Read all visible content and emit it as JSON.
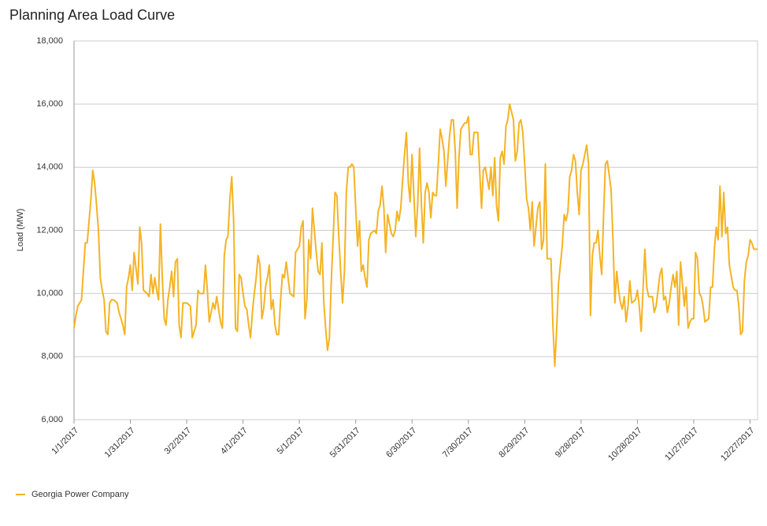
{
  "chart_data": {
    "type": "line",
    "title": "Planning Area Load Curve",
    "y_label": "Load (MW)",
    "categories": [
      "1/1/2017",
      null,
      null,
      null,
      null,
      null,
      null,
      null,
      null,
      null,
      null,
      null,
      null,
      null,
      null,
      null,
      null,
      null,
      null,
      null,
      null,
      null,
      null,
      null,
      null,
      null,
      null,
      null,
      null,
      null,
      "1/31/2017",
      null,
      null,
      null,
      null,
      null,
      null,
      null,
      null,
      null,
      null,
      null,
      null,
      null,
      null,
      null,
      null,
      null,
      null,
      null,
      null,
      null,
      null,
      null,
      null,
      null,
      null,
      null,
      null,
      null,
      "3/2/2017",
      null,
      null,
      null,
      null,
      null,
      null,
      null,
      null,
      null,
      null,
      null,
      null,
      null,
      null,
      null,
      null,
      null,
      null,
      null,
      null,
      null,
      null,
      null,
      null,
      null,
      null,
      null,
      null,
      null,
      "4/1/2017",
      null,
      null,
      null,
      null,
      null,
      null,
      null,
      null,
      null,
      null,
      null,
      null,
      null,
      null,
      null,
      null,
      null,
      null,
      null,
      null,
      null,
      null,
      null,
      null,
      null,
      null,
      null,
      null,
      null,
      "5/1/2017",
      null,
      null,
      null,
      null,
      null,
      null,
      null,
      null,
      null,
      null,
      null,
      null,
      null,
      null,
      null,
      null,
      null,
      null,
      null,
      null,
      null,
      null,
      null,
      null,
      null,
      null,
      null,
      null,
      null,
      "5/31/2017",
      null,
      null,
      null,
      null,
      null,
      null,
      null,
      null,
      null,
      null,
      null,
      null,
      null,
      null,
      null,
      null,
      null,
      null,
      null,
      null,
      null,
      null,
      null,
      null,
      null,
      null,
      null,
      null,
      null,
      "6/30/2017",
      null,
      null,
      null,
      null,
      null,
      null,
      null,
      null,
      null,
      null,
      null,
      null,
      null,
      null,
      null,
      null,
      null,
      null,
      null,
      null,
      null,
      null,
      null,
      null,
      null,
      null,
      null,
      null,
      null,
      "7/30/2017",
      null,
      null,
      null,
      null,
      null,
      null,
      null,
      null,
      null,
      null,
      null,
      null,
      null,
      null,
      null,
      null,
      null,
      null,
      null,
      null,
      null,
      null,
      null,
      null,
      null,
      null,
      null,
      null,
      null,
      "8/29/2017",
      null,
      null,
      null,
      null,
      null,
      null,
      null,
      null,
      null,
      null,
      null,
      null,
      null,
      null,
      null,
      null,
      null,
      null,
      null,
      null,
      null,
      null,
      null,
      null,
      null,
      null,
      null,
      null,
      null,
      "9/28/2017",
      null,
      null,
      null,
      null,
      null,
      null,
      null,
      null,
      null,
      null,
      null,
      null,
      null,
      null,
      null,
      null,
      null,
      null,
      null,
      null,
      null,
      null,
      null,
      null,
      null,
      null,
      null,
      null,
      null,
      "10/28/2017",
      null,
      null,
      null,
      null,
      null,
      null,
      null,
      null,
      null,
      null,
      null,
      null,
      null,
      null,
      null,
      null,
      null,
      null,
      null,
      null,
      null,
      null,
      null,
      null,
      null,
      null,
      null,
      null,
      null,
      "11/27/2017",
      null,
      null,
      null,
      null,
      null,
      null,
      null,
      null,
      null,
      null,
      null,
      null,
      null,
      null,
      null,
      null,
      null,
      null,
      null,
      null,
      null,
      null,
      null,
      null,
      null,
      null,
      null,
      null,
      null,
      "12/27/2017",
      null,
      null,
      null,
      null
    ],
    "series": [
      {
        "name": "Georgia Power Company",
        "color": "#f5b324",
        "values": [
          8900,
          9300,
          9600,
          9700,
          9800,
          10700,
          11600,
          11600,
          12300,
          13000,
          13900,
          13500,
          12800,
          12000,
          10500,
          10100,
          9800,
          8800,
          8700,
          9700,
          9800,
          9800,
          9750,
          9700,
          9400,
          9200,
          9000,
          8700,
          10200,
          10500,
          10900,
          10100,
          11300,
          10800,
          10300,
          12100,
          11600,
          10100,
          10050,
          10000,
          9900,
          10600,
          10000,
          10500,
          10100,
          9800,
          12200,
          10500,
          9200,
          9000,
          9800,
          10200,
          10700,
          9900,
          11000,
          11100,
          9000,
          8600,
          9700,
          9700,
          9700,
          9650,
          9600,
          8600,
          8800,
          9000,
          10100,
          10000,
          10000,
          10000,
          10900,
          10100,
          9100,
          9400,
          9700,
          9500,
          9900,
          9500,
          9100,
          8900,
          11200,
          11700,
          11800,
          13000,
          13700,
          12300,
          8900,
          8800,
          10600,
          10500,
          10000,
          9600,
          9500,
          9000,
          8600,
          9400,
          10000,
          10500,
          11200,
          10900,
          9200,
          9500,
          10200,
          10500,
          10900,
          9500,
          9800,
          9000,
          8700,
          8700,
          9800,
          10600,
          10500,
          11000,
          10500,
          10000,
          9950,
          9900,
          11300,
          11400,
          11500,
          12100,
          12300,
          9200,
          9800,
          11700,
          11100,
          12700,
          12000,
          11300,
          10700,
          10600,
          11600,
          9700,
          8900,
          8200,
          8600,
          10400,
          11800,
          13200,
          13100,
          11800,
          10700,
          9700,
          10700,
          13200,
          14000,
          14000,
          14100,
          14000,
          12700,
          11500,
          12300,
          10700,
          10900,
          10500,
          10200,
          11700,
          11900,
          11950,
          12000,
          11900,
          12600,
          12800,
          13400,
          12700,
          11300,
          12500,
          12200,
          11900,
          11800,
          12000,
          12600,
          12300,
          12700,
          13600,
          14400,
          15100,
          13500,
          12900,
          14400,
          13100,
          11800,
          12800,
          14600,
          12800,
          11600,
          13200,
          13500,
          13200,
          12400,
          13200,
          13100,
          13100,
          14100,
          15200,
          14900,
          14500,
          13400,
          14200,
          15000,
          15500,
          15500,
          14500,
          12700,
          14300,
          15200,
          15300,
          15400,
          15400,
          15600,
          14400,
          14400,
          15100,
          15100,
          15100,
          13900,
          12700,
          13900,
          14000,
          13650,
          13300,
          14000,
          13100,
          14300,
          12800,
          12300,
          14300,
          14500,
          14100,
          15300,
          15500,
          16000,
          15750,
          15500,
          14200,
          14500,
          15400,
          15500,
          15100,
          14100,
          13000,
          12700,
          12000,
          12900,
          11500,
          12100,
          12700,
          12900,
          11400,
          11700,
          14100,
          11100,
          11100,
          11100,
          9000,
          7700,
          8800,
          10300,
          10900,
          11500,
          12500,
          12300,
          12600,
          13700,
          13900,
          14400,
          14200,
          13200,
          12500,
          13900,
          14100,
          14400,
          14700,
          14100,
          9300,
          11200,
          11600,
          11600,
          12000,
          11200,
          10600,
          12500,
          14100,
          14200,
          13750,
          13300,
          11700,
          9700,
          10700,
          10100,
          9700,
          9500,
          9900,
          9100,
          9600,
          10400,
          9700,
          9750,
          9800,
          10100,
          9600,
          8800,
          10100,
          11400,
          10200,
          9900,
          9900,
          9900,
          9400,
          9600,
          10100,
          10600,
          10800,
          9800,
          9900,
          9400,
          9700,
          10200,
          10600,
          10200,
          10700,
          9000,
          11000,
          10300,
          9600,
          10200,
          8900,
          9100,
          9200,
          9200,
          11300,
          11100,
          10000,
          9900,
          9600,
          9100,
          9150,
          9200,
          10200,
          10200,
          11400,
          12100,
          11700,
          13400,
          11800,
          13200,
          11900,
          12100,
          10900,
          10550,
          10200,
          10100,
          10100,
          9600,
          8700,
          8800,
          10400,
          11000,
          11200,
          11700,
          11600,
          11400,
          11400,
          11400
        ]
      }
    ],
    "ylim": [
      6000,
      18000
    ],
    "yticks": [
      {
        "value": 6000,
        "label": "6,000"
      },
      {
        "value": 8000,
        "label": "8,000"
      },
      {
        "value": 10000,
        "label": "10,000"
      },
      {
        "value": 12000,
        "label": "12,000"
      },
      {
        "value": 14000,
        "label": "14,000"
      },
      {
        "value": 16000,
        "label": "16,000"
      },
      {
        "value": 18000,
        "label": "18,000"
      }
    ],
    "grid": true,
    "legend": "bottom-left"
  }
}
